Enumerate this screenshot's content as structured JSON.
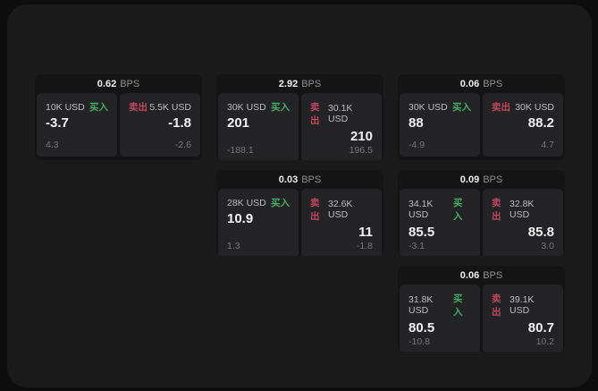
{
  "app": {
    "buy_label": "买入",
    "sell_label": "卖出",
    "bps_unit": "BPS"
  },
  "colors": {
    "buy_green": "#3fae63",
    "sell_red": "#c2455e",
    "window_bg": "#1a1a1b",
    "card_bg": "#141415",
    "panel_bg": "#232325"
  },
  "cards": [
    {
      "bps": "0.62",
      "buy": {
        "amount": "10K USD",
        "value": "-3.7",
        "sub": "4.3"
      },
      "sell": {
        "amount": "5.5K USD",
        "value": "-1.8",
        "sub": "-2.6"
      }
    },
    {
      "bps": "2.92",
      "buy": {
        "amount": "30K USD",
        "value": "201",
        "sub": "-188.1"
      },
      "sell": {
        "amount": "30.1K USD",
        "value": "210",
        "sub": "196.5"
      }
    },
    {
      "bps": "0.06",
      "buy": {
        "amount": "30K USD",
        "value": "88",
        "sub": "-4.9"
      },
      "sell": {
        "amount": "30K USD",
        "value": "88.2",
        "sub": "4.7"
      }
    },
    {
      "bps": "0.03",
      "buy": {
        "amount": "28K USD",
        "value": "10.9",
        "sub": "1.3"
      },
      "sell": {
        "amount": "32.6K USD",
        "value": "11",
        "sub": "-1.8"
      }
    },
    {
      "bps": "0.09",
      "buy": {
        "amount": "34.1K USD",
        "value": "85.5",
        "sub": "-3.1"
      },
      "sell": {
        "amount": "32.8K USD",
        "value": "85.8",
        "sub": "3.0"
      }
    },
    {
      "bps": "0.06",
      "buy": {
        "amount": "31.8K USD",
        "value": "80.5",
        "sub": "-10.8"
      },
      "sell": {
        "amount": "39.1K USD",
        "value": "80.7",
        "sub": "10.2"
      }
    }
  ]
}
